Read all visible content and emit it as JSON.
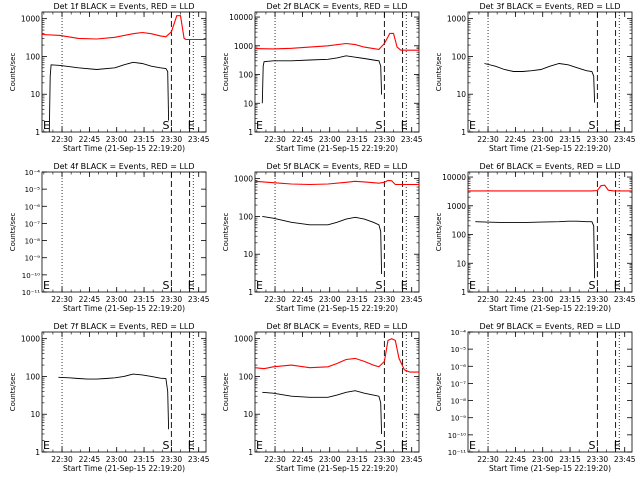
{
  "chart_data": [
    {
      "type": "line",
      "title": "Det 1f BLACK = Events, RED = LLD",
      "xlabel": "Start Time (21-Sep-15 22:19:20)",
      "ylabel": "Counts/sec",
      "x_ticks": [
        "22:30",
        "22:45",
        "23:00",
        "23:15",
        "23:30",
        "23:45"
      ],
      "y_scale": "log",
      "y_ticks": [
        "1",
        "10",
        "100",
        "1000"
      ],
      "ylim": [
        1,
        1500
      ],
      "markers": [
        {
          "label": "E",
          "x_min": 0
        },
        {
          "label": "S",
          "x_min": 70
        },
        {
          "label": "E",
          "x_min": 80
        }
      ],
      "dotted_lines_x_min": [
        11,
        83
      ],
      "dashed_lines_x_min": [
        71,
        81
      ],
      "series": [
        {
          "color": "#ff0000",
          "x_min": [
            0,
            10,
            20,
            30,
            40,
            50,
            55,
            60,
            65,
            68,
            71,
            74,
            76,
            78,
            79,
            80,
            85,
            90
          ],
          "values": [
            380,
            360,
            300,
            290,
            320,
            400,
            430,
            400,
            350,
            330,
            450,
            1200,
            1200,
            300,
            280,
            280,
            280,
            280
          ]
        },
        {
          "color": "#000000",
          "x_min": [
            4,
            4.5,
            5,
            10,
            20,
            30,
            40,
            45,
            50,
            55,
            60,
            65,
            68,
            69,
            69.5
          ],
          "values": [
            1,
            30,
            60,
            58,
            50,
            45,
            50,
            60,
            70,
            65,
            55,
            50,
            48,
            40,
            2
          ]
        }
      ]
    },
    {
      "type": "line",
      "title": "Det 2f BLACK = Events, RED = LLD",
      "xlabel": "Start Time (21-Sep-15 22:19:20)",
      "ylabel": "Counts/sec",
      "x_ticks": [
        "22:30",
        "22:45",
        "23:00",
        "23:15",
        "23:30",
        "23:45"
      ],
      "y_scale": "log",
      "y_ticks": [
        "1",
        "10",
        "100",
        "1000",
        "10000"
      ],
      "ylim": [
        1,
        15000
      ],
      "markers": [
        {
          "label": "E",
          "x_min": 0
        },
        {
          "label": "S",
          "x_min": 70
        },
        {
          "label": "E",
          "x_min": 80
        }
      ],
      "dotted_lines_x_min": [
        11,
        83
      ],
      "dashed_lines_x_min": [
        71,
        81
      ],
      "series": [
        {
          "color": "#ff0000",
          "x_min": [
            0,
            10,
            20,
            30,
            40,
            50,
            55,
            60,
            65,
            68,
            71,
            74,
            76,
            78,
            80,
            85,
            90
          ],
          "values": [
            800,
            780,
            820,
            900,
            1000,
            1200,
            1100,
            900,
            800,
            750,
            1200,
            2700,
            2700,
            900,
            700,
            700,
            700
          ]
        },
        {
          "color": "#000000",
          "x_min": [
            4,
            4.5,
            5,
            10,
            20,
            30,
            40,
            45,
            50,
            55,
            60,
            65,
            68,
            69,
            69.5
          ],
          "values": [
            10,
            200,
            280,
            300,
            300,
            320,
            340,
            380,
            450,
            400,
            360,
            320,
            300,
            200,
            20
          ]
        }
      ]
    },
    {
      "type": "line",
      "title": "Det 3f BLACK = Events, RED = LLD",
      "xlabel": "Start Time (21-Sep-15 22:19:20)",
      "ylabel": "Counts/sec",
      "x_ticks": [
        "22:30",
        "22:45",
        "23:00",
        "23:15",
        "23:30",
        "23:45"
      ],
      "y_scale": "log",
      "y_ticks": [
        "1",
        "10",
        "100",
        "1000"
      ],
      "ylim": [
        1,
        1500
      ],
      "markers": [
        {
          "label": "E",
          "x_min": 0
        },
        {
          "label": "S",
          "x_min": 70
        },
        {
          "label": "E",
          "x_min": 80
        }
      ],
      "dotted_lines_x_min": [
        11,
        83
      ],
      "dashed_lines_x_min": [
        71,
        81
      ],
      "series": [
        {
          "color": "#000000",
          "x_min": [
            9,
            15,
            20,
            25,
            30,
            35,
            40,
            45,
            50,
            55,
            60,
            65,
            68,
            69,
            69.5
          ],
          "values": [
            65,
            55,
            45,
            40,
            40,
            42,
            45,
            55,
            65,
            60,
            50,
            42,
            40,
            30,
            6
          ]
        }
      ]
    },
    {
      "type": "line",
      "title": "Det 4f BLACK = Events, RED = LLD",
      "xlabel": "Start Time (21-Sep-15 22:19:20)",
      "ylabel": "Counts/sec",
      "x_ticks": [
        "22:30",
        "22:45",
        "23:00",
        "23:15",
        "23:30",
        "23:45"
      ],
      "y_scale": "log",
      "y_ticks_exponents": [
        -11,
        -10,
        -9,
        -8,
        -7,
        -6,
        -5,
        -4
      ],
      "ylim": [
        1e-11,
        0.0001
      ],
      "markers": [
        {
          "label": "E",
          "x_min": 0
        },
        {
          "label": "S",
          "x_min": 70
        },
        {
          "label": "E",
          "x_min": 80
        }
      ],
      "dotted_lines_x_min": [
        11,
        83
      ],
      "dashed_lines_x_min": [
        71,
        81
      ],
      "series": []
    },
    {
      "type": "line",
      "title": "Det 5f BLACK = Events, RED = LLD",
      "xlabel": "Start Time (21-Sep-15 22:19:20)",
      "ylabel": "Counts/sec",
      "x_ticks": [
        "22:30",
        "22:45",
        "23:00",
        "23:15",
        "23:30",
        "23:45"
      ],
      "y_scale": "log",
      "y_ticks": [
        "1",
        "10",
        "100",
        "1000"
      ],
      "ylim": [
        1,
        1500
      ],
      "markers": [
        {
          "label": "E",
          "x_min": 0
        },
        {
          "label": "S",
          "x_min": 70
        },
        {
          "label": "E",
          "x_min": 80
        }
      ],
      "dotted_lines_x_min": [
        11,
        83
      ],
      "dashed_lines_x_min": [
        71,
        81
      ],
      "series": [
        {
          "color": "#ff0000",
          "x_min": [
            0,
            10,
            20,
            30,
            40,
            50,
            55,
            60,
            65,
            68,
            71,
            73,
            75,
            77,
            80,
            85,
            90
          ],
          "values": [
            850,
            780,
            720,
            700,
            720,
            800,
            850,
            820,
            780,
            760,
            800,
            900,
            880,
            700,
            700,
            700,
            700
          ]
        },
        {
          "color": "#000000",
          "x_min": [
            4,
            10,
            20,
            30,
            40,
            45,
            50,
            55,
            60,
            65,
            68,
            69,
            69.5
          ],
          "values": [
            100,
            90,
            70,
            60,
            60,
            70,
            85,
            95,
            85,
            70,
            60,
            40,
            3
          ]
        }
      ]
    },
    {
      "type": "line",
      "title": "Det 6f BLACK = Events, RED = LLD",
      "xlabel": "Start Time (21-Sep-15 22:19:20)",
      "ylabel": "Counts/sec",
      "x_ticks": [
        "22:30",
        "22:45",
        "23:00",
        "23:15",
        "23:30",
        "23:45"
      ],
      "y_scale": "log",
      "y_ticks": [
        "1",
        "10",
        "100",
        "1000",
        "10000"
      ],
      "ylim": [
        1,
        15000
      ],
      "markers": [
        {
          "label": "E",
          "x_min": 0
        },
        {
          "label": "S",
          "x_min": 70
        },
        {
          "label": "E",
          "x_min": 80
        }
      ],
      "dotted_lines_x_min": [
        11,
        83
      ],
      "dashed_lines_x_min": [
        71,
        81
      ],
      "series": [
        {
          "color": "#ff0000",
          "x_min": [
            0,
            10,
            20,
            30,
            40,
            50,
            60,
            68,
            71,
            73,
            75,
            77,
            80,
            90
          ],
          "values": [
            3300,
            3300,
            3300,
            3300,
            3300,
            3300,
            3300,
            3300,
            3400,
            5000,
            5200,
            3500,
            3300,
            3300
          ]
        },
        {
          "color": "#000000",
          "x_min": [
            4,
            10,
            20,
            30,
            40,
            50,
            55,
            60,
            65,
            68,
            69,
            69.5
          ],
          "values": [
            280,
            270,
            260,
            260,
            270,
            280,
            290,
            290,
            280,
            280,
            200,
            3
          ]
        }
      ]
    },
    {
      "type": "line",
      "title": "Det 7f BLACK = Events, RED = LLD",
      "xlabel": "Start Time (21-Sep-15 22:19:20)",
      "ylabel": "Counts/sec",
      "x_ticks": [
        "22:30",
        "22:45",
        "23:00",
        "23:15",
        "23:30",
        "23:45"
      ],
      "y_scale": "log",
      "y_ticks": [
        "1",
        "10",
        "100",
        "1000"
      ],
      "ylim": [
        1,
        1500
      ],
      "markers": [
        {
          "label": "E",
          "x_min": 0
        },
        {
          "label": "S",
          "x_min": 70
        },
        {
          "label": "E",
          "x_min": 80
        }
      ],
      "dotted_lines_x_min": [
        11,
        83
      ],
      "dashed_lines_x_min": [
        71,
        81
      ],
      "series": [
        {
          "color": "#000000",
          "x_min": [
            9,
            15,
            20,
            25,
            30,
            35,
            40,
            45,
            50,
            55,
            60,
            65,
            68,
            69,
            69.5
          ],
          "values": [
            95,
            92,
            88,
            85,
            85,
            88,
            92,
            100,
            115,
            110,
            100,
            90,
            88,
            40,
            4
          ]
        }
      ]
    },
    {
      "type": "line",
      "title": "Det 8f BLACK = Events, RED = LLD",
      "xlabel": "Start Time (21-Sep-15 22:19:20)",
      "ylabel": "Counts/sec",
      "x_ticks": [
        "22:30",
        "22:45",
        "23:00",
        "23:15",
        "23:30",
        "23:45"
      ],
      "y_scale": "log",
      "y_ticks": [
        "1",
        "10",
        "100",
        "1000"
      ],
      "ylim": [
        1,
        1500
      ],
      "markers": [
        {
          "label": "E",
          "x_min": 0
        },
        {
          "label": "S",
          "x_min": 70
        },
        {
          "label": "E",
          "x_min": 80
        }
      ],
      "dotted_lines_x_min": [
        11,
        83
      ],
      "dashed_lines_x_min": [
        71,
        81
      ],
      "series": [
        {
          "color": "#ff0000",
          "x_min": [
            0,
            5,
            10,
            20,
            30,
            40,
            45,
            50,
            55,
            60,
            65,
            68,
            71,
            73,
            75,
            77,
            79,
            82,
            85,
            90
          ],
          "values": [
            170,
            160,
            180,
            200,
            170,
            180,
            220,
            280,
            300,
            250,
            200,
            180,
            250,
            900,
            1000,
            900,
            300,
            150,
            130,
            130
          ]
        },
        {
          "color": "#000000",
          "x_min": [
            4,
            10,
            20,
            30,
            40,
            45,
            50,
            55,
            60,
            65,
            68,
            69,
            69.5
          ],
          "values": [
            38,
            36,
            30,
            28,
            28,
            32,
            38,
            42,
            36,
            32,
            30,
            20,
            3
          ]
        }
      ]
    },
    {
      "type": "line",
      "title": "Det 9f BLACK = Events, RED = LLD",
      "xlabel": "Start Time (21-Sep-15 22:19:20)",
      "ylabel": "Counts/sec",
      "x_ticks": [
        "22:30",
        "22:45",
        "23:00",
        "23:15",
        "23:30",
        "23:45"
      ],
      "y_scale": "log",
      "y_ticks_exponents": [
        -11,
        -10,
        -9,
        -8,
        -7,
        -6,
        -5,
        -4
      ],
      "ylim": [
        1e-11,
        0.0001
      ],
      "markers": [
        {
          "label": "E",
          "x_min": 0
        },
        {
          "label": "S",
          "x_min": 70
        },
        {
          "label": "E",
          "x_min": 80
        }
      ],
      "dotted_lines_x_min": [
        11,
        83
      ],
      "dashed_lines_x_min": [
        71,
        81
      ],
      "series": []
    }
  ]
}
